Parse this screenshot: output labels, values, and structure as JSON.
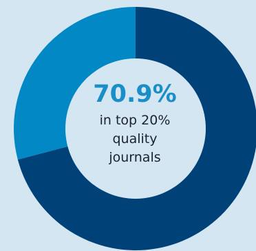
{
  "colors": {
    "background": "#d4e6f2",
    "primary_slice": "#004278",
    "secondary_slice": "#0288c4",
    "center_fill": "#d4e6f2",
    "highlight_text": "#1a8ec7",
    "body_text": "#1b2333"
  },
  "chart_data": {
    "type": "pie",
    "slices": [
      {
        "value": 70.9
      },
      {
        "value": 29.1
      }
    ],
    "center_label": {
      "value": "70.9%",
      "lines": [
        "in top 20%",
        "quality",
        "journals"
      ]
    }
  }
}
